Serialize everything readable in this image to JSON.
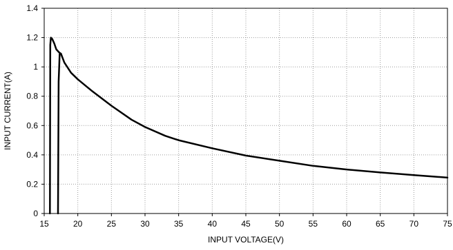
{
  "chart_data": {
    "type": "line",
    "title": "",
    "xlabel": "INPUT VOLTAGE(V)",
    "ylabel": "INPUT CURRENT(A)",
    "xlim": [
      15,
      75
    ],
    "ylim": [
      0,
      1.4
    ],
    "xticks": [
      15,
      20,
      25,
      30,
      35,
      40,
      45,
      50,
      55,
      60,
      65,
      70,
      75
    ],
    "xtick_labels": [
      "15",
      "20",
      "25",
      "30",
      "35",
      "40",
      "45",
      "50",
      "55",
      "60",
      "65",
      "70",
      "75"
    ],
    "yticks": [
      0,
      0.2,
      0.4,
      0.6,
      0.8,
      1,
      1.2,
      1.4
    ],
    "ytick_labels": [
      "0",
      "0.2",
      "0.4",
      "0.6",
      "0.8",
      "1",
      "1.2",
      "1.4"
    ],
    "grid": true,
    "grid_style": "dotted",
    "line_color": "#000000",
    "series": [
      {
        "x": [
          15.85,
          15.9,
          16.0,
          16.2,
          16.5,
          16.8,
          17.2,
          17.5,
          18,
          19,
          20,
          22,
          25,
          28,
          30,
          33,
          35,
          40,
          45,
          50,
          55,
          60,
          65,
          70,
          75
        ],
        "y": [
          0,
          1.15,
          1.2,
          1.19,
          1.16,
          1.12,
          1.1,
          1.09,
          1.03,
          0.96,
          0.915,
          0.84,
          0.735,
          0.64,
          0.59,
          0.53,
          0.5,
          0.445,
          0.395,
          0.36,
          0.325,
          0.3,
          0.28,
          0.262,
          0.245
        ]
      },
      {
        "x": [
          17.05,
          17.15,
          17.3,
          17.5
        ],
        "y": [
          0,
          0.9,
          1.09,
          1.09
        ]
      }
    ]
  }
}
